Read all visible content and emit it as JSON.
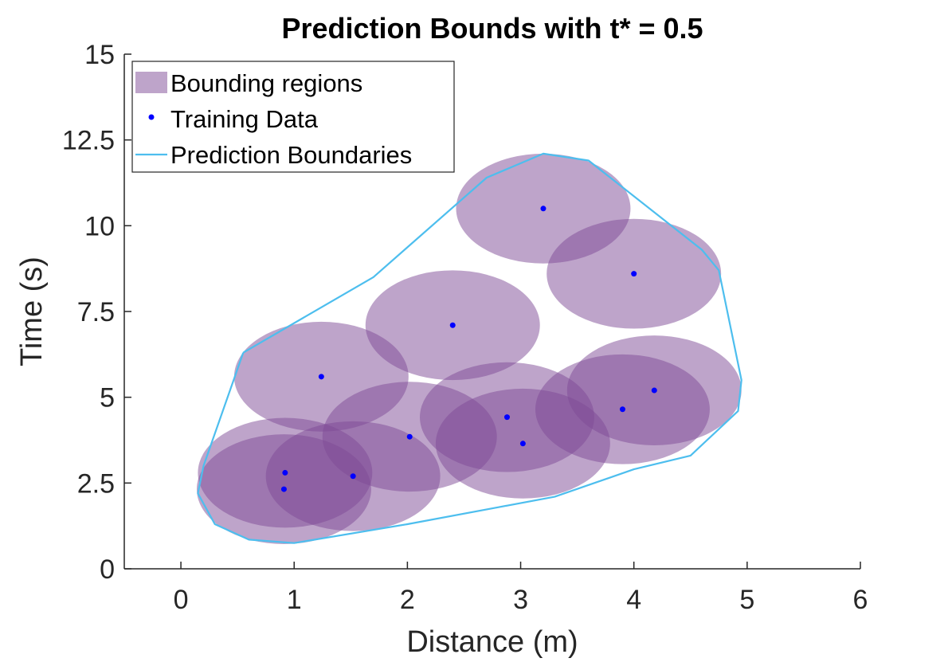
{
  "chart_data": {
    "type": "scatter",
    "title": "Prediction Bounds with t* = 0.5",
    "xlabel": "Distance (m)",
    "ylabel": "Time (s)",
    "xlim": [
      -0.5,
      6
    ],
    "ylim": [
      0,
      15
    ],
    "xticks": [
      "0",
      "1",
      "2",
      "3",
      "4",
      "5",
      "6"
    ],
    "yticks": [
      "0",
      "2.5",
      "5",
      "7.5",
      "10",
      "12.5",
      "15"
    ],
    "grid": false,
    "legend_position": "top-left",
    "legend": [
      {
        "label": "Bounding regions",
        "kind": "patch"
      },
      {
        "label": "Training Data",
        "kind": "marker"
      },
      {
        "label": "Prediction Boundaries",
        "kind": "line"
      }
    ],
    "colors": {
      "region_fill": "#7e4a96",
      "region_opacity": 0.5,
      "points": "#0000ff",
      "boundary": "#4dbeee",
      "axis": "#262626"
    },
    "region_radius": {
      "x": 0.77,
      "y": 1.6
    },
    "training_data": {
      "x": [
        0.91,
        0.92,
        1.52,
        1.24,
        2.02,
        2.4,
        2.88,
        3.02,
        3.2,
        3.9,
        4.0,
        4.18
      ],
      "y": [
        2.32,
        2.8,
        2.7,
        5.6,
        3.85,
        7.1,
        4.42,
        3.65,
        10.5,
        4.65,
        8.6,
        5.2
      ]
    },
    "prediction_boundary": {
      "x": [
        0.55,
        1.7,
        2.7,
        3.2,
        3.6,
        4.6,
        4.75,
        4.95,
        4.92,
        4.5,
        4.0,
        3.3,
        2.0,
        1.0,
        0.6,
        0.3,
        0.15,
        0.2,
        0.55
      ],
      "y": [
        6.3,
        8.5,
        11.4,
        12.1,
        11.9,
        9.3,
        8.7,
        5.5,
        4.6,
        3.3,
        2.9,
        2.1,
        1.3,
        0.75,
        0.85,
        1.3,
        2.2,
        3.0,
        6.3
      ]
    }
  }
}
